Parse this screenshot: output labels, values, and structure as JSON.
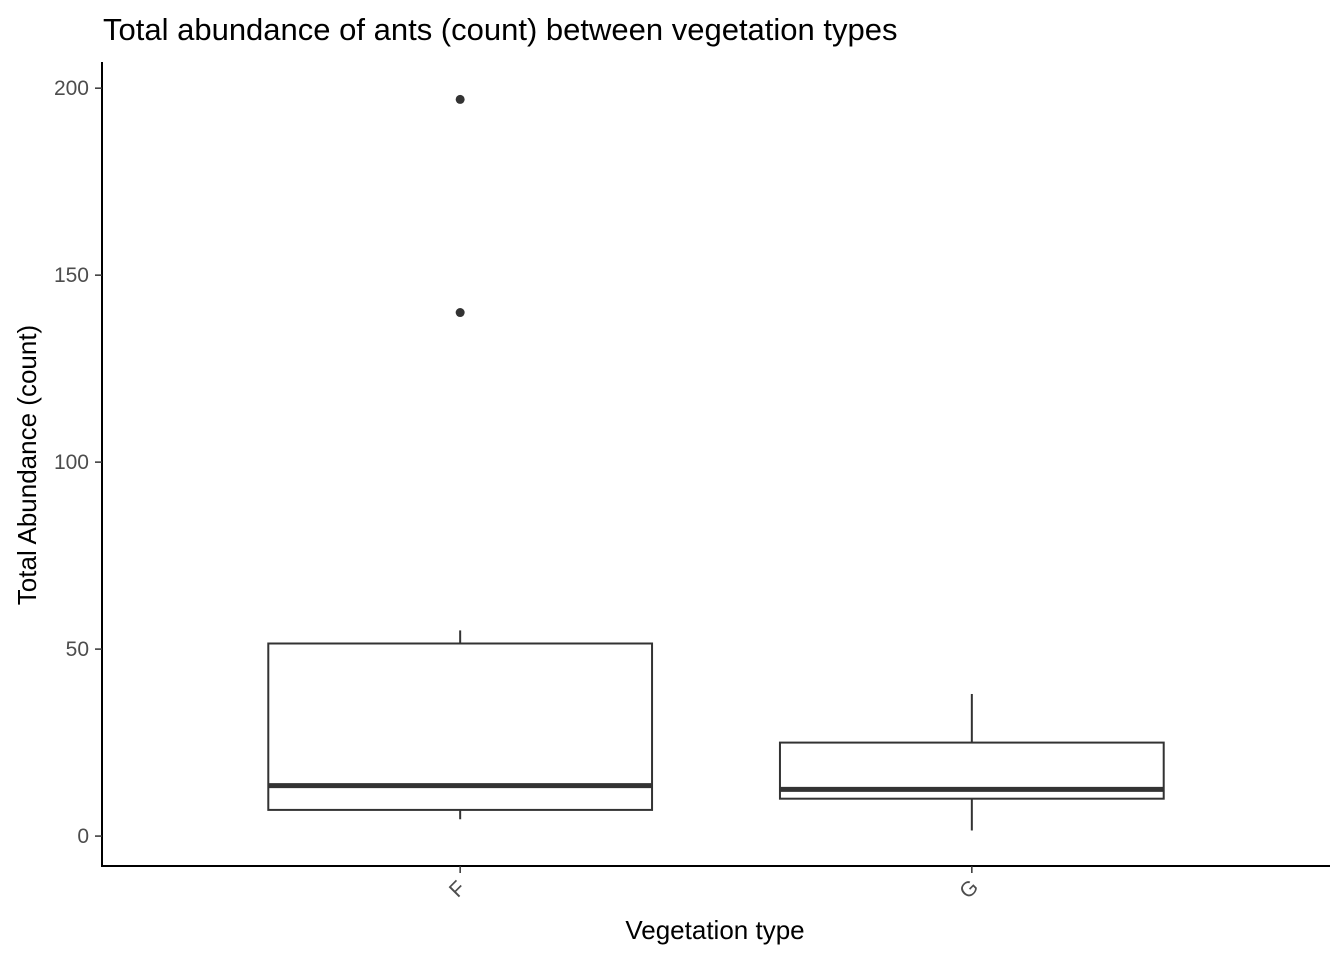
{
  "chart_data": {
    "type": "boxplot",
    "title": "Total abundance of ants (count) between vegetation types",
    "xlabel": "Vegetation type",
    "ylabel": "Total Abundance (count)",
    "ylim": [
      -8,
      207
    ],
    "yticks": [
      0,
      50,
      100,
      150,
      200
    ],
    "ytick_labels": [
      "0",
      "50",
      "100",
      "150",
      "200"
    ],
    "grid": false,
    "legend": "none",
    "categories": [
      "F",
      "G"
    ],
    "boxes": [
      {
        "category": "F",
        "whisker_low": 4.5,
        "q1": 7,
        "median": 13.5,
        "q3": 51.5,
        "whisker_high": 55,
        "outliers": [
          140,
          197
        ]
      },
      {
        "category": "G",
        "whisker_low": 1.5,
        "q1": 10,
        "median": 12.5,
        "q3": 25,
        "whisker_high": 38,
        "outliers": []
      }
    ],
    "colors": {
      "box_line": "#333333",
      "axis_line": "#000000",
      "tick_text": "#4d4d4d"
    }
  }
}
